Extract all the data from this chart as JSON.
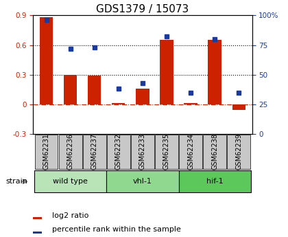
{
  "title": "GDS1379 / 15073",
  "samples": [
    "GSM62231",
    "GSM62236",
    "GSM62237",
    "GSM62232",
    "GSM62233",
    "GSM62235",
    "GSM62234",
    "GSM62238",
    "GSM62239"
  ],
  "log2_ratio": [
    0.88,
    0.3,
    0.29,
    0.01,
    0.16,
    0.65,
    0.01,
    0.65,
    -0.06
  ],
  "percentile_rank": [
    96,
    72,
    73,
    38,
    43,
    82,
    35,
    80,
    35
  ],
  "groups": [
    {
      "label": "wild type",
      "indices": [
        0,
        1,
        2
      ],
      "color": "#b8e4b8"
    },
    {
      "label": "vhl-1",
      "indices": [
        3,
        4,
        5
      ],
      "color": "#90d890"
    },
    {
      "label": "hif-1",
      "indices": [
        6,
        7,
        8
      ],
      "color": "#5cc85c"
    }
  ],
  "ylim_left": [
    -0.3,
    0.9
  ],
  "ylim_right": [
    0,
    100
  ],
  "yticks_left": [
    -0.3,
    0.0,
    0.3,
    0.6,
    0.9
  ],
  "yticks_right": [
    0,
    25,
    50,
    75,
    100
  ],
  "bar_color": "#cc2200",
  "dot_color": "#1a3a9e",
  "bar_width": 0.55,
  "hline_dotted_values": [
    0.3,
    0.6
  ],
  "hline_dashed_value": 0.0,
  "label_log2": "log2 ratio",
  "label_percentile": "percentile rank within the sample",
  "strain_label": "strain",
  "sample_box_color": "#c8c8c8",
  "title_fontsize": 11,
  "tick_fontsize": 7.5,
  "label_fontsize": 7,
  "group_fontsize": 8
}
